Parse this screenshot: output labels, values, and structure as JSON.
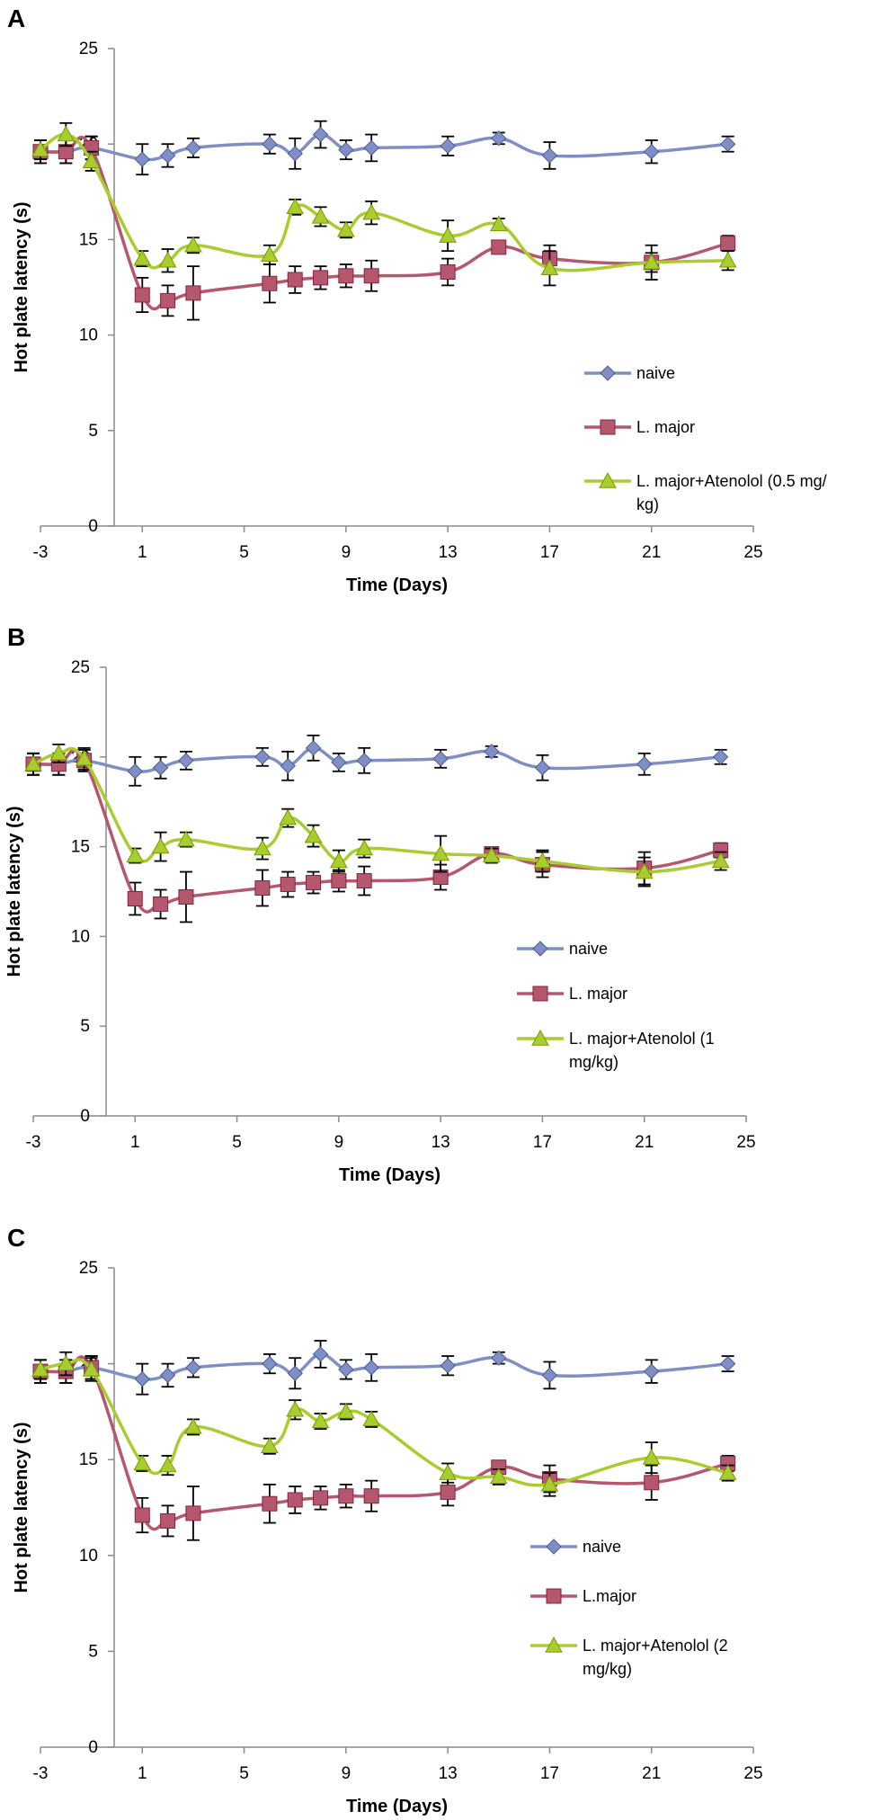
{
  "chart_data": [
    {
      "type": "line",
      "panel_label": "A",
      "xlabel": "Time (Days)",
      "ylabel": "Hot plate latency (s)",
      "xlim": [
        -3,
        25
      ],
      "ylim": [
        0,
        25
      ],
      "xticks": [
        "-3",
        "1",
        "5",
        "9",
        "13",
        "17",
        "21",
        "25"
      ],
      "yticks": [
        "0",
        "5",
        "10",
        "15",
        "20",
        "25"
      ],
      "legend_position": "bottom-right",
      "series": [
        {
          "name": "naive",
          "marker": "diamond",
          "color": "#7f8fc6",
          "x": [
            -3,
            -2,
            -1,
            1,
            2,
            3,
            6,
            7,
            8,
            9,
            10,
            13,
            15,
            17,
            21,
            24
          ],
          "y": [
            19.6,
            19.6,
            19.8,
            19.2,
            19.4,
            19.8,
            20.0,
            19.5,
            20.5,
            19.7,
            19.8,
            19.9,
            20.3,
            19.4,
            19.6,
            20.0
          ],
          "err": [
            0.6,
            0.6,
            0.6,
            0.8,
            0.6,
            0.5,
            0.5,
            0.8,
            0.7,
            0.5,
            0.7,
            0.5,
            0.3,
            0.7,
            0.6,
            0.4
          ]
        },
        {
          "name": "L. major",
          "marker": "square",
          "color": "#b5576e",
          "x": [
            -3,
            -2,
            -1,
            1,
            2,
            3,
            6,
            7,
            8,
            9,
            10,
            13,
            15,
            17,
            21,
            24
          ],
          "y": [
            19.6,
            19.6,
            19.8,
            12.1,
            11.8,
            12.2,
            12.7,
            12.9,
            13.0,
            13.1,
            13.1,
            13.3,
            14.6,
            14.0,
            13.8,
            14.8
          ],
          "err": [
            0.6,
            0.6,
            0.6,
            0.9,
            0.8,
            1.4,
            1.0,
            0.7,
            0.6,
            0.6,
            0.8,
            0.7,
            0.3,
            0.7,
            0.9,
            0.4
          ]
        },
        {
          "name": "L. major+Atenolol (0.5 mg/kg)",
          "legend_lines": [
            "L. major+Atenolol (0.5 mg/",
            "kg)"
          ],
          "marker": "triangle",
          "color": "#a9cd2f",
          "x": [
            -3,
            -2,
            -1,
            1,
            2,
            3,
            6,
            7,
            8,
            9,
            10,
            13,
            15,
            17,
            21,
            24
          ],
          "y": [
            19.7,
            20.5,
            19.1,
            14.0,
            13.9,
            14.7,
            14.2,
            16.7,
            16.2,
            15.5,
            16.4,
            15.2,
            15.8,
            13.5,
            13.8,
            13.9
          ],
          "err": [
            0.5,
            0.6,
            0.5,
            0.4,
            0.6,
            0.4,
            0.5,
            0.4,
            0.5,
            0.4,
            0.6,
            0.8,
            0.3,
            0.9,
            0.5,
            0.5
          ]
        }
      ]
    },
    {
      "type": "line",
      "panel_label": "B",
      "xlabel": "Time (Days)",
      "ylabel": "Hot plate latency (s)",
      "xlim": [
        -3,
        25
      ],
      "ylim": [
        0,
        25
      ],
      "xticks": [
        "-3",
        "1",
        "5",
        "9",
        "13",
        "17",
        "21",
        "25"
      ],
      "yticks": [
        "0",
        "5",
        "10",
        "15",
        "20",
        "25"
      ],
      "legend_position": "bottom-right",
      "series": [
        {
          "name": "naive",
          "marker": "diamond",
          "color": "#7f8fc6",
          "x": [
            -3,
            -2,
            -1,
            1,
            2,
            3,
            6,
            7,
            8,
            9,
            10,
            13,
            15,
            17,
            21,
            24
          ],
          "y": [
            19.6,
            19.6,
            19.8,
            19.2,
            19.4,
            19.8,
            20.0,
            19.5,
            20.5,
            19.7,
            19.8,
            19.9,
            20.3,
            19.4,
            19.6,
            20.0
          ],
          "err": [
            0.6,
            0.6,
            0.6,
            0.8,
            0.6,
            0.5,
            0.5,
            0.8,
            0.7,
            0.5,
            0.7,
            0.5,
            0.3,
            0.7,
            0.6,
            0.4
          ]
        },
        {
          "name": "L. major",
          "marker": "square",
          "color": "#b5576e",
          "x": [
            -3,
            -2,
            -1,
            1,
            2,
            3,
            6,
            7,
            8,
            9,
            10,
            13,
            15,
            17,
            21,
            24
          ],
          "y": [
            19.6,
            19.6,
            19.8,
            12.1,
            11.8,
            12.2,
            12.7,
            12.9,
            13.0,
            13.1,
            13.1,
            13.3,
            14.6,
            14.0,
            13.8,
            14.8
          ],
          "err": [
            0.6,
            0.6,
            0.6,
            0.9,
            0.8,
            1.4,
            1.0,
            0.7,
            0.6,
            0.6,
            0.8,
            0.7,
            0.3,
            0.7,
            0.9,
            0.4
          ]
        },
        {
          "name": "L. major+Atenolol (1 mg/kg)",
          "legend_lines": [
            "L. major+Atenolol (1",
            "mg/kg)"
          ],
          "marker": "triangle",
          "color": "#a9cd2f",
          "x": [
            -3,
            -2,
            -1,
            1,
            2,
            3,
            6,
            7,
            8,
            9,
            10,
            13,
            15,
            17,
            21,
            24
          ],
          "y": [
            19.6,
            20.2,
            19.9,
            14.5,
            15.0,
            15.4,
            14.9,
            16.6,
            15.6,
            14.2,
            14.9,
            14.6,
            14.5,
            14.2,
            13.6,
            14.2
          ],
          "err": [
            0.6,
            0.5,
            0.6,
            0.4,
            0.8,
            0.4,
            0.6,
            0.5,
            0.6,
            0.6,
            0.5,
            1.0,
            0.4,
            0.6,
            0.8,
            0.5
          ]
        }
      ]
    },
    {
      "type": "line",
      "panel_label": "C",
      "xlabel": "Time (Days)",
      "ylabel": "Hot plate latency (s)",
      "xlim": [
        -3,
        25
      ],
      "ylim": [
        0,
        25
      ],
      "xticks": [
        "-3",
        "1",
        "5",
        "9",
        "13",
        "17",
        "21",
        "25"
      ],
      "yticks": [
        "0",
        "5",
        "10",
        "15",
        "20",
        "25"
      ],
      "legend_position": "bottom-right",
      "series": [
        {
          "name": "naive",
          "marker": "diamond",
          "color": "#7f8fc6",
          "x": [
            -3,
            -2,
            -1,
            1,
            2,
            3,
            6,
            7,
            8,
            9,
            10,
            13,
            15,
            17,
            21,
            24
          ],
          "y": [
            19.6,
            19.6,
            19.8,
            19.2,
            19.4,
            19.8,
            20.0,
            19.5,
            20.5,
            19.7,
            19.8,
            19.9,
            20.3,
            19.4,
            19.6,
            20.0
          ],
          "err": [
            0.6,
            0.6,
            0.6,
            0.8,
            0.6,
            0.5,
            0.5,
            0.8,
            0.7,
            0.5,
            0.7,
            0.5,
            0.3,
            0.7,
            0.6,
            0.4
          ]
        },
        {
          "name": "L.major",
          "marker": "square",
          "color": "#b5576e",
          "x": [
            -3,
            -2,
            -1,
            1,
            2,
            3,
            6,
            7,
            8,
            9,
            10,
            13,
            15,
            17,
            21,
            24
          ],
          "y": [
            19.6,
            19.6,
            19.8,
            12.1,
            11.8,
            12.2,
            12.7,
            12.9,
            13.0,
            13.1,
            13.1,
            13.3,
            14.6,
            14.0,
            13.8,
            14.8
          ],
          "err": [
            0.6,
            0.6,
            0.6,
            0.9,
            0.8,
            1.4,
            1.0,
            0.7,
            0.6,
            0.6,
            0.8,
            0.7,
            0.3,
            0.7,
            0.9,
            0.4
          ]
        },
        {
          "name": "L. major+Atenolol (2 mg/kg)",
          "legend_lines": [
            "L. major+Atenolol (2",
            "mg/kg)"
          ],
          "marker": "triangle",
          "color": "#a9cd2f",
          "x": [
            -3,
            -2,
            -1,
            1,
            2,
            3,
            6,
            7,
            8,
            9,
            10,
            13,
            15,
            17,
            21,
            24
          ],
          "y": [
            19.7,
            20.0,
            19.7,
            14.8,
            14.7,
            16.7,
            15.7,
            17.6,
            17.0,
            17.5,
            17.1,
            14.3,
            14.1,
            13.7,
            15.1,
            14.3
          ],
          "err": [
            0.5,
            0.6,
            0.6,
            0.4,
            0.5,
            0.4,
            0.4,
            0.5,
            0.4,
            0.4,
            0.4,
            0.5,
            0.4,
            0.6,
            0.8,
            0.4
          ]
        }
      ]
    }
  ]
}
